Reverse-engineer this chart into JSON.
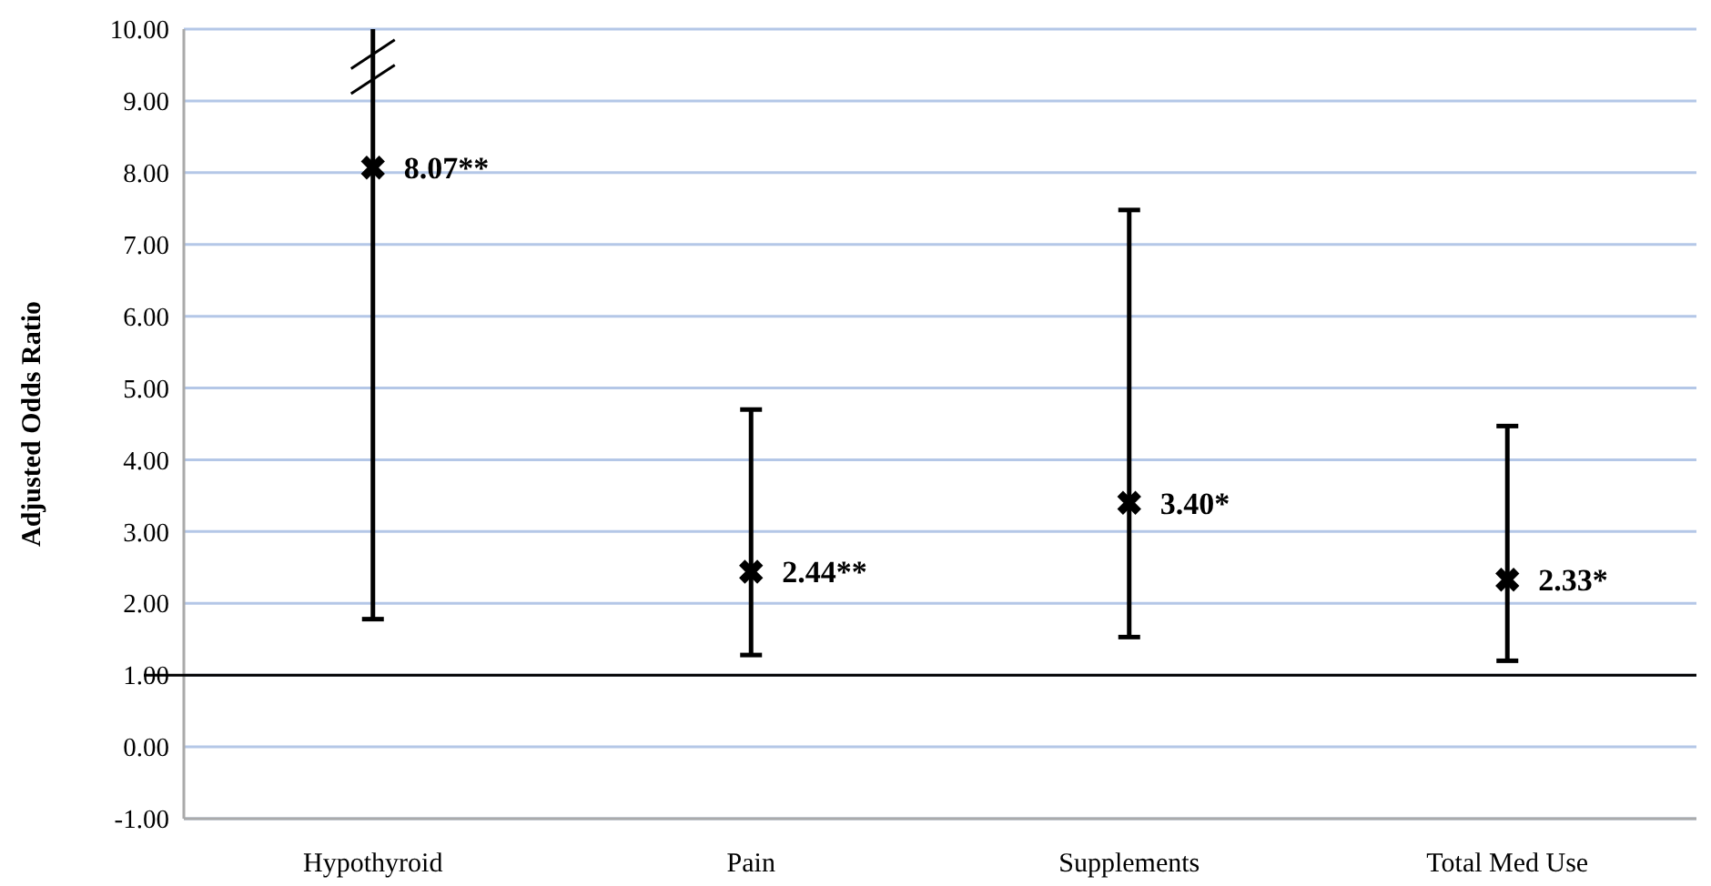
{
  "chart_data": {
    "type": "scatter",
    "ylabel": "Adjusted Odds Ratio",
    "categories": [
      "Hypothyroid",
      "Pain",
      "Supplements",
      "Total Med Use"
    ],
    "series": [
      {
        "color": "#000000",
        "values": [
          8.07,
          2.44,
          3.4,
          2.33
        ],
        "errors": [
          [
            1.78,
            10.0
          ],
          [
            1.28,
            4.7
          ],
          [
            1.53,
            7.48
          ],
          [
            1.2,
            4.47
          ]
        ],
        "value_labels": [
          "8.07**",
          "2.44**",
          "3.40*",
          "2.33*"
        ]
      }
    ],
    "ylim": [
      -1,
      10
    ],
    "yticks": [
      {
        "value": -1,
        "label": "-1.00"
      },
      {
        "value": 0,
        "label": "0.00"
      },
      {
        "value": 1,
        "label": "1.00"
      },
      {
        "value": 2,
        "label": "2.00"
      },
      {
        "value": 3,
        "label": "3.00"
      },
      {
        "value": 4,
        "label": "4.00"
      },
      {
        "value": 5,
        "label": "5.00"
      },
      {
        "value": 6,
        "label": "6.00"
      },
      {
        "value": 7,
        "label": "7.00"
      },
      {
        "value": 8,
        "label": "8.00"
      },
      {
        "value": 9,
        "label": "9.00"
      },
      {
        "value": 10,
        "label": "10.00"
      }
    ],
    "grid": "y",
    "marker": "cross",
    "ref_lines": [
      {
        "axis": "y",
        "value": 1,
        "color": "#000000"
      }
    ]
  }
}
